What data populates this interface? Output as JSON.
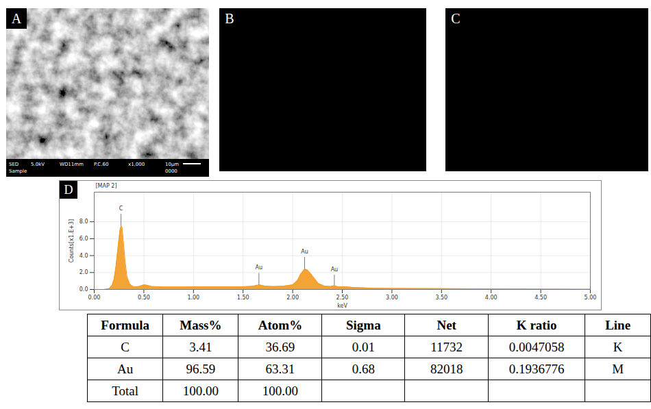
{
  "sem": {
    "letter": "A",
    "info": {
      "top": [
        "SED",
        "5.0kV",
        "WD11mm",
        "P.C.60",
        "x1,000",
        "10μm"
      ],
      "bottom": [
        "Sample",
        "0000"
      ]
    }
  },
  "maps": [
    {
      "letter": "B",
      "color": "#e8221c"
    },
    {
      "letter": "C",
      "color": "#3b2fd8"
    }
  ],
  "chart_letter": "D",
  "chart_data": {
    "type": "area",
    "title": "[MAP 2]",
    "x_label": "keV",
    "y_label": "Counts[x1.E+3]",
    "color": "#f39a1e",
    "grid": true,
    "xlim": [
      0,
      5
    ],
    "xticks": [
      {
        "value": 0,
        "label": "0.00"
      },
      {
        "value": 0.5,
        "label": "0.50"
      },
      {
        "value": 1,
        "label": "1.00"
      },
      {
        "value": 1.5,
        "label": "1.50"
      },
      {
        "value": 2,
        "label": "2.00"
      },
      {
        "value": 2.5,
        "label": "2.50"
      },
      {
        "value": 3,
        "label": "3.00"
      },
      {
        "value": 3.5,
        "label": "3.50"
      },
      {
        "value": 4,
        "label": "4.00"
      },
      {
        "value": 4.5,
        "label": "4.50"
      },
      {
        "value": 5,
        "label": "5.00"
      }
    ],
    "ylim": [
      0,
      11.5
    ],
    "yticks": [
      {
        "value": 0,
        "label": "0.0"
      },
      {
        "value": 2,
        "label": "2.0"
      },
      {
        "value": 4,
        "label": "4.0"
      },
      {
        "value": 6,
        "label": "6.0"
      },
      {
        "value": 8,
        "label": "8.0"
      }
    ],
    "x": [
      0.1,
      0.15,
      0.18,
      0.2,
      0.22,
      0.24,
      0.26,
      0.27,
      0.28,
      0.29,
      0.31,
      0.33,
      0.36,
      0.4,
      0.45,
      0.5,
      0.53,
      0.58,
      0.7,
      0.9,
      1.1,
      1.3,
      1.5,
      1.6,
      1.66,
      1.72,
      1.8,
      1.9,
      2.0,
      2.05,
      2.08,
      2.12,
      2.15,
      2.18,
      2.22,
      2.26,
      2.32,
      2.38,
      2.42,
      2.46,
      2.55,
      2.6,
      2.8,
      3.0,
      3.5,
      4.0,
      4.5,
      5.0
    ],
    "values": [
      0,
      0.1,
      0.5,
      1.2,
      2.8,
      5.0,
      7.0,
      7.5,
      7.4,
      6.2,
      3.5,
      1.5,
      0.6,
      0.3,
      0.35,
      0.55,
      0.5,
      0.35,
      0.3,
      0.3,
      0.32,
      0.32,
      0.33,
      0.38,
      0.55,
      0.4,
      0.35,
      0.38,
      0.55,
      1.1,
      1.8,
      2.4,
      2.3,
      1.9,
      1.3,
      0.7,
      0.4,
      0.35,
      0.45,
      0.3,
      0.3,
      0.25,
      0.15,
      0.12,
      0.1,
      0.07,
      0.05,
      0.03
    ],
    "annotations": [
      {
        "text": "C",
        "x": 0.27,
        "y": 8.9
      },
      {
        "text": "Au",
        "x": 1.66,
        "y": 1.9
      },
      {
        "text": "Au",
        "x": 2.12,
        "y": 3.8
      },
      {
        "text": "Au",
        "x": 2.42,
        "y": 1.7
      }
    ]
  },
  "table": {
    "header": [
      "Formula",
      "Mass%",
      "Atom%",
      "Sigma",
      "Net",
      "K ratio",
      "Line"
    ],
    "rows": [
      [
        "C",
        "3.41",
        "36.69",
        "0.01",
        "11732",
        "0.0047058",
        "K"
      ],
      [
        "Au",
        "96.59",
        "63.31",
        "0.68",
        "82018",
        "0.1936776",
        "M"
      ],
      [
        "Total",
        "100.00",
        "100.00"
      ]
    ]
  }
}
